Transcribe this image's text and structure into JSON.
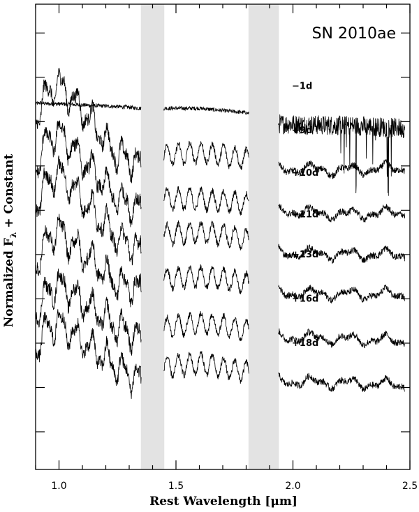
{
  "chart_data": {
    "type": "line",
    "title": "SN 2010ae",
    "xlabel": "Rest Wavelength [μm]",
    "ylabel_main": "Normalized F",
    "ylabel_sub": "λ",
    "ylabel_rest": " + Constant",
    "xlim": [
      0.9,
      2.5
    ],
    "x_ticks": [
      {
        "value": 1.0,
        "label": "1.0"
      },
      {
        "value": 1.5,
        "label": "1.5"
      },
      {
        "value": 2.0,
        "label": "2.0"
      },
      {
        "value": 2.5,
        "label": "2.5"
      }
    ],
    "telluric_bands": [
      [
        1.35,
        1.45
      ],
      [
        1.81,
        1.94
      ]
    ],
    "band_color": "#e3e3e3",
    "line_color": "#000000",
    "series": [
      {
        "name": "−1d",
        "offset": 12.0,
        "anchors": [
          [
            0.9,
            1.5
          ],
          [
            0.92,
            1.55
          ],
          [
            0.95,
            1.5
          ],
          [
            1.0,
            1.5
          ],
          [
            1.1,
            1.45
          ],
          [
            1.2,
            1.4
          ],
          [
            1.3,
            1.35
          ],
          [
            1.34,
            1.3
          ],
          [
            1.45,
            1.3
          ],
          [
            1.6,
            1.3
          ],
          [
            1.7,
            1.2
          ],
          [
            1.8,
            1.1
          ],
          [
            1.94,
            0.6
          ],
          [
            2.1,
            0.55
          ],
          [
            2.3,
            0.5
          ],
          [
            2.48,
            0.4
          ]
        ]
      },
      {
        "name": "+9d",
        "offset": 10.0,
        "anchors": [
          [
            0.9,
            2.8
          ],
          [
            0.95,
            4.0
          ],
          [
            1.0,
            4.4
          ],
          [
            1.05,
            3.8
          ],
          [
            1.1,
            3.2
          ],
          [
            1.15,
            2.6
          ],
          [
            1.2,
            1.8
          ],
          [
            1.25,
            1.2
          ],
          [
            1.3,
            1.0
          ],
          [
            1.34,
            0.8
          ],
          [
            1.45,
            1.2
          ],
          [
            1.6,
            1.3
          ],
          [
            1.7,
            1.2
          ],
          [
            1.8,
            1.0
          ],
          [
            1.94,
            0.6
          ],
          [
            2.2,
            0.5
          ],
          [
            2.48,
            0.6
          ]
        ]
      },
      {
        "name": "+10d",
        "offset": 8.0,
        "anchors": [
          [
            0.9,
            2.6
          ],
          [
            0.95,
            3.9
          ],
          [
            1.0,
            4.2
          ],
          [
            1.05,
            3.6
          ],
          [
            1.1,
            3.0
          ],
          [
            1.15,
            2.4
          ],
          [
            1.2,
            1.8
          ],
          [
            1.25,
            1.2
          ],
          [
            1.3,
            1.0
          ],
          [
            1.34,
            0.8
          ],
          [
            1.45,
            1.2
          ],
          [
            1.6,
            1.2
          ],
          [
            1.7,
            1.1
          ],
          [
            1.8,
            1.0
          ],
          [
            1.94,
            0.7
          ],
          [
            2.2,
            0.5
          ],
          [
            2.48,
            0.6
          ]
        ]
      },
      {
        "name": "+11d",
        "offset": 6.0,
        "anchors": [
          [
            0.9,
            2.8
          ],
          [
            0.95,
            4.0
          ],
          [
            1.0,
            4.4
          ],
          [
            1.05,
            3.8
          ],
          [
            1.1,
            3.2
          ],
          [
            1.15,
            2.6
          ],
          [
            1.2,
            2.0
          ],
          [
            1.25,
            1.4
          ],
          [
            1.3,
            1.2
          ],
          [
            1.34,
            0.9
          ],
          [
            1.45,
            1.6
          ],
          [
            1.6,
            1.7
          ],
          [
            1.7,
            1.6
          ],
          [
            1.8,
            1.4
          ],
          [
            1.94,
            0.8
          ],
          [
            2.2,
            0.7
          ],
          [
            2.48,
            0.7
          ]
        ]
      },
      {
        "name": "+13d",
        "offset": 4.0,
        "anchors": [
          [
            0.9,
            2.2
          ],
          [
            0.95,
            3.4
          ],
          [
            1.0,
            3.8
          ],
          [
            1.05,
            3.2
          ],
          [
            1.1,
            2.8
          ],
          [
            1.15,
            2.4
          ],
          [
            1.2,
            1.8
          ],
          [
            1.25,
            1.4
          ],
          [
            1.3,
            1.3
          ],
          [
            1.34,
            1.1
          ],
          [
            1.45,
            1.6
          ],
          [
            1.6,
            1.7
          ],
          [
            1.7,
            1.6
          ],
          [
            1.8,
            1.4
          ],
          [
            1.94,
            1.0
          ],
          [
            2.2,
            0.9
          ],
          [
            2.48,
            0.9
          ]
        ]
      },
      {
        "name": "+16d",
        "offset": 2.0,
        "anchors": [
          [
            0.9,
            2.0
          ],
          [
            0.95,
            3.0
          ],
          [
            1.0,
            3.4
          ],
          [
            1.05,
            3.0
          ],
          [
            1.1,
            2.6
          ],
          [
            1.15,
            2.2
          ],
          [
            1.2,
            1.8
          ],
          [
            1.25,
            1.4
          ],
          [
            1.3,
            1.2
          ],
          [
            1.34,
            1.0
          ],
          [
            1.45,
            1.4
          ],
          [
            1.6,
            1.6
          ],
          [
            1.7,
            1.5
          ],
          [
            1.8,
            1.3
          ],
          [
            1.94,
            1.0
          ],
          [
            2.2,
            0.9
          ],
          [
            2.48,
            0.8
          ]
        ]
      },
      {
        "name": "+18d",
        "offset": 0.0,
        "anchors": [
          [
            0.9,
            2.4
          ],
          [
            0.95,
            3.4
          ],
          [
            1.0,
            3.6
          ],
          [
            1.05,
            3.2
          ],
          [
            1.1,
            2.8
          ],
          [
            1.15,
            2.4
          ],
          [
            1.2,
            2.0
          ],
          [
            1.25,
            1.6
          ],
          [
            1.3,
            1.3
          ],
          [
            1.34,
            1.1
          ],
          [
            1.45,
            1.6
          ],
          [
            1.6,
            1.8
          ],
          [
            1.7,
            1.6
          ],
          [
            1.8,
            1.4
          ],
          [
            1.94,
            1.0
          ],
          [
            2.2,
            0.9
          ],
          [
            2.48,
            0.8
          ]
        ]
      }
    ]
  }
}
